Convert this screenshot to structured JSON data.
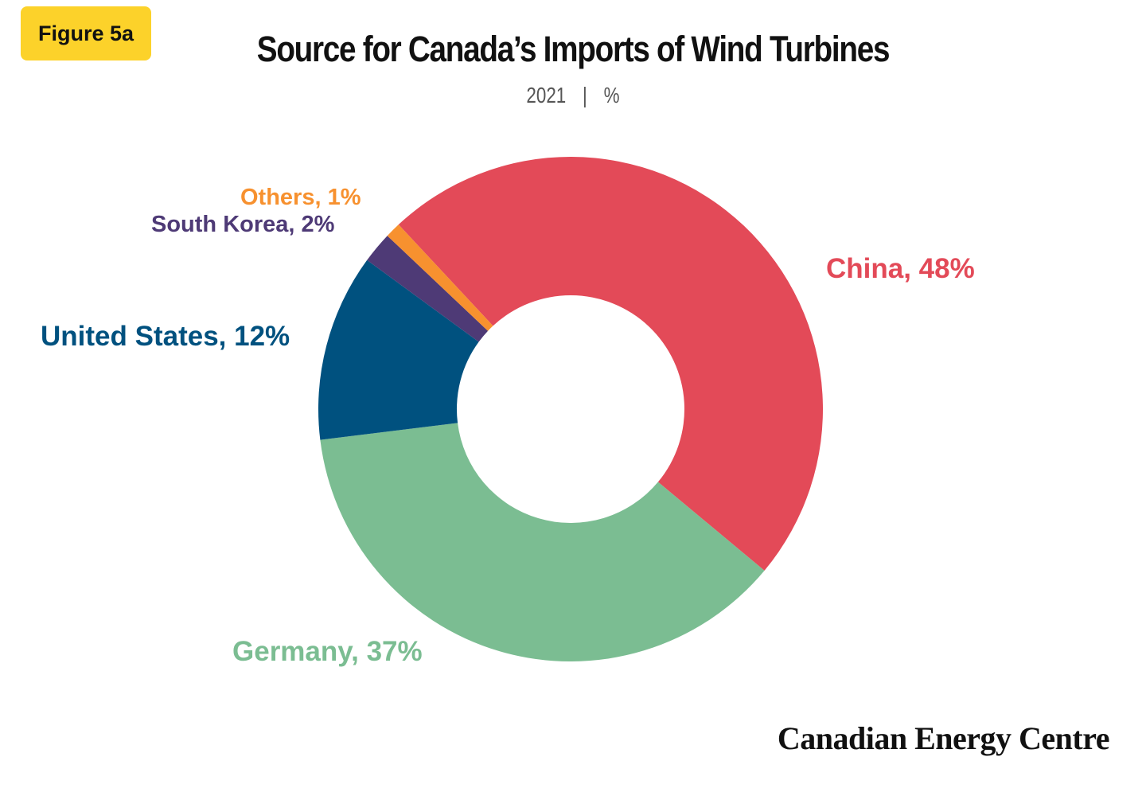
{
  "figure_label": "Figure 5a",
  "brand": "Canadian Energy Centre",
  "chart_data": {
    "type": "pie",
    "donut": true,
    "title": "Source for Canada’s Imports of Wind Turbines",
    "subtitle_year": "2021",
    "subtitle_unit": "%",
    "legend": "none",
    "slices": [
      {
        "name": "China",
        "value": 48,
        "label": "China, 48%",
        "color": "#e34a58"
      },
      {
        "name": "Germany",
        "value": 37,
        "label": "Germany, 37%",
        "color": "#7bbd92"
      },
      {
        "name": "United States",
        "value": 12,
        "label": "United States, 12%",
        "color": "#00517f"
      },
      {
        "name": "South Korea",
        "value": 2,
        "label": "South Korea, 2%",
        "color": "#4e3a76"
      },
      {
        "name": "Others",
        "value": 1,
        "label": "Others, 1%",
        "color": "#f7912f"
      }
    ]
  },
  "colors": {
    "badge": "#fcd22a",
    "title": "#111111",
    "subtitle": "#555555"
  }
}
